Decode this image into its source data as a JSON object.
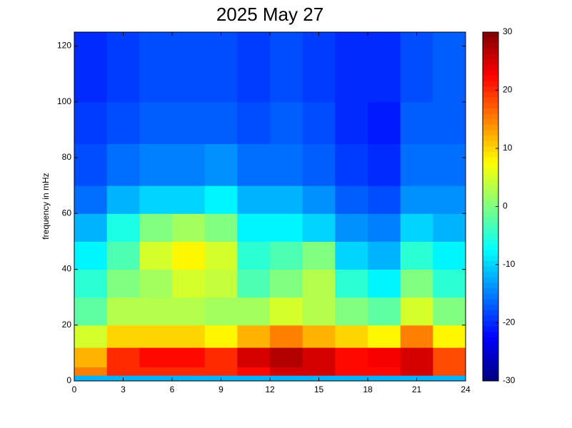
{
  "chart_data": {
    "type": "heatmap",
    "title": "2025 May 27",
    "y_label": "frequency in mHz",
    "x": [
      0,
      2,
      4,
      6,
      8,
      10,
      12,
      14,
      16,
      18,
      20,
      22,
      24
    ],
    "y": [
      0,
      2,
      5,
      12,
      20,
      30,
      40,
      50,
      60,
      70,
      85,
      100,
      125
    ],
    "z": [
      [
        -12,
        -12,
        -12,
        -12,
        -12,
        -12,
        -12,
        -12,
        -12,
        -12,
        -12,
        -12
      ],
      [
        15,
        20,
        20,
        20,
        20,
        22,
        25,
        25,
        22,
        22,
        25,
        18
      ],
      [
        12,
        20,
        22,
        22,
        20,
        25,
        27,
        25,
        22,
        23,
        25,
        18
      ],
      [
        5,
        10,
        10,
        10,
        8,
        12,
        15,
        12,
        10,
        8,
        15,
        8
      ],
      [
        -2,
        3,
        3,
        3,
        2,
        2,
        5,
        3,
        0,
        -2,
        5,
        0
      ],
      [
        -5,
        0,
        2,
        5,
        4,
        -3,
        0,
        3,
        -5,
        -8,
        0,
        -5
      ],
      [
        -8,
        -3,
        5,
        8,
        5,
        -5,
        -3,
        0,
        -10,
        -12,
        -5,
        -8
      ],
      [
        -12,
        -6,
        0,
        2,
        0,
        -8,
        -8,
        -10,
        -14,
        -15,
        -10,
        -12
      ],
      [
        -16,
        -12,
        -10,
        -10,
        -8,
        -12,
        -12,
        -14,
        -17,
        -18,
        -14,
        -14
      ],
      [
        -18,
        -16,
        -15,
        -15,
        -14,
        -16,
        -16,
        -17,
        -19,
        -20,
        -16,
        -16
      ],
      [
        -19,
        -18,
        -17,
        -17,
        -17,
        -18,
        -17,
        -18,
        -20,
        -21,
        -17,
        -17
      ],
      [
        -20,
        -19,
        -18,
        -18,
        -18,
        -19,
        -18,
        -19,
        -20,
        -20,
        -18,
        -17
      ]
    ],
    "colormap": "jet",
    "clim": [
      -30,
      30
    ],
    "cticks": [
      -30,
      -20,
      -10,
      0,
      10,
      20,
      30
    ],
    "xlim": [
      0,
      24
    ],
    "xticks": [
      0,
      3,
      6,
      9,
      12,
      15,
      18,
      21,
      24
    ],
    "ylim": [
      0,
      125
    ],
    "yticks": [
      0,
      20,
      40,
      60,
      80,
      100,
      120
    ]
  }
}
